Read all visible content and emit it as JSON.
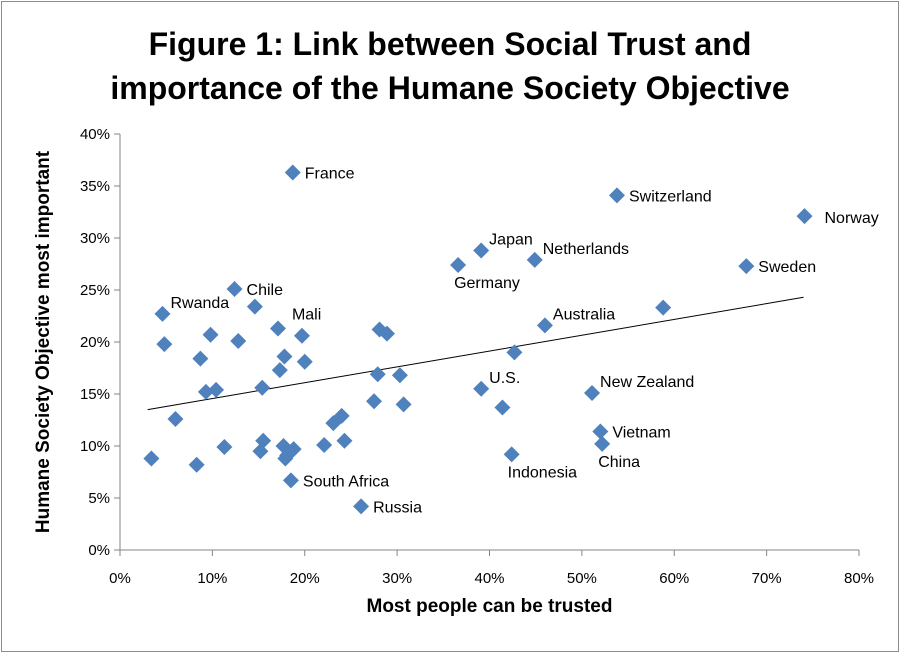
{
  "chart_data": {
    "type": "scatter",
    "title_line1": "Figure 1: Link between Social Trust and",
    "title_line2": "importance of the Humane Society Objective",
    "xlabel": "Most people can be trusted",
    "ylabel": "Humane Society Objective most important",
    "xlim": [
      0,
      0.8
    ],
    "ylim": [
      0,
      0.4
    ],
    "x_ticks": [
      {
        "value": 0.0,
        "label": "0%"
      },
      {
        "value": 0.1,
        "label": "10%"
      },
      {
        "value": 0.2,
        "label": "20%"
      },
      {
        "value": 0.3,
        "label": "30%"
      },
      {
        "value": 0.4,
        "label": "40%"
      },
      {
        "value": 0.5,
        "label": "50%"
      },
      {
        "value": 0.6,
        "label": "60%"
      },
      {
        "value": 0.7,
        "label": "70%"
      },
      {
        "value": 0.8,
        "label": "80%"
      }
    ],
    "y_ticks": [
      {
        "value": 0.0,
        "label": "0%"
      },
      {
        "value": 0.05,
        "label": "5%"
      },
      {
        "value": 0.1,
        "label": "10%"
      },
      {
        "value": 0.15,
        "label": "15%"
      },
      {
        "value": 0.2,
        "label": "20%"
      },
      {
        "value": 0.25,
        "label": "25%"
      },
      {
        "value": 0.3,
        "label": "30%"
      },
      {
        "value": 0.35,
        "label": "35%"
      },
      {
        "value": 0.4,
        "label": "40%"
      }
    ],
    "grid": false,
    "marker_color": "#4f81bd",
    "trendline": {
      "x": [
        0.03,
        0.74
      ],
      "y": [
        0.135,
        0.243
      ],
      "color": "#000000"
    },
    "points": [
      {
        "x": 0.187,
        "y": 0.363,
        "label": "France",
        "label_pos": "right"
      },
      {
        "x": 0.538,
        "y": 0.341,
        "label": "Switzerland",
        "label_pos": "right"
      },
      {
        "x": 0.741,
        "y": 0.321,
        "label": "Norway",
        "label_pos": "right-far"
      },
      {
        "x": 0.391,
        "y": 0.288,
        "label": "Japan",
        "label_pos": "above-right"
      },
      {
        "x": 0.449,
        "y": 0.279,
        "label": "Netherlands",
        "label_pos": "above-right"
      },
      {
        "x": 0.366,
        "y": 0.274,
        "label": "Germany",
        "label_pos": "below-right"
      },
      {
        "x": 0.678,
        "y": 0.273,
        "label": "Sweden",
        "label_pos": "right"
      },
      {
        "x": 0.124,
        "y": 0.251,
        "label": "Chile",
        "label_pos": "right"
      },
      {
        "x": 0.046,
        "y": 0.227,
        "label": "Rwanda",
        "label_pos": "above-right"
      },
      {
        "x": 0.146,
        "y": 0.234,
        "label": "",
        "label_pos": "none"
      },
      {
        "x": 0.588,
        "y": 0.233,
        "label": "",
        "label_pos": "none"
      },
      {
        "x": 0.46,
        "y": 0.216,
        "label": "Australia",
        "label_pos": "above-right"
      },
      {
        "x": 0.171,
        "y": 0.213,
        "label": "Mali",
        "label_pos": "above-right-far"
      },
      {
        "x": 0.098,
        "y": 0.207,
        "label": "",
        "label_pos": "none"
      },
      {
        "x": 0.197,
        "y": 0.206,
        "label": "",
        "label_pos": "none"
      },
      {
        "x": 0.281,
        "y": 0.212,
        "label": "",
        "label_pos": "none"
      },
      {
        "x": 0.289,
        "y": 0.208,
        "label": "",
        "label_pos": "none"
      },
      {
        "x": 0.048,
        "y": 0.198,
        "label": "",
        "label_pos": "none"
      },
      {
        "x": 0.128,
        "y": 0.201,
        "label": "",
        "label_pos": "none"
      },
      {
        "x": 0.427,
        "y": 0.19,
        "label": "",
        "label_pos": "none"
      },
      {
        "x": 0.087,
        "y": 0.184,
        "label": "",
        "label_pos": "none"
      },
      {
        "x": 0.178,
        "y": 0.186,
        "label": "",
        "label_pos": "none"
      },
      {
        "x": 0.2,
        "y": 0.181,
        "label": "",
        "label_pos": "none"
      },
      {
        "x": 0.173,
        "y": 0.173,
        "label": "",
        "label_pos": "none"
      },
      {
        "x": 0.279,
        "y": 0.169,
        "label": "",
        "label_pos": "none"
      },
      {
        "x": 0.303,
        "y": 0.168,
        "label": "",
        "label_pos": "none"
      },
      {
        "x": 0.154,
        "y": 0.156,
        "label": "",
        "label_pos": "none"
      },
      {
        "x": 0.093,
        "y": 0.152,
        "label": "",
        "label_pos": "none"
      },
      {
        "x": 0.104,
        "y": 0.154,
        "label": "",
        "label_pos": "none"
      },
      {
        "x": 0.391,
        "y": 0.155,
        "label": "U.S.",
        "label_pos": "above-right"
      },
      {
        "x": 0.511,
        "y": 0.151,
        "label": "New Zealand",
        "label_pos": "above-right"
      },
      {
        "x": 0.275,
        "y": 0.143,
        "label": "",
        "label_pos": "none"
      },
      {
        "x": 0.307,
        "y": 0.14,
        "label": "",
        "label_pos": "none"
      },
      {
        "x": 0.414,
        "y": 0.137,
        "label": "",
        "label_pos": "none"
      },
      {
        "x": 0.06,
        "y": 0.126,
        "label": "",
        "label_pos": "none"
      },
      {
        "x": 0.24,
        "y": 0.129,
        "label": "",
        "label_pos": "none"
      },
      {
        "x": 0.231,
        "y": 0.122,
        "label": "",
        "label_pos": "none"
      },
      {
        "x": 0.52,
        "y": 0.114,
        "label": "Vietnam",
        "label_pos": "right"
      },
      {
        "x": 0.155,
        "y": 0.105,
        "label": "",
        "label_pos": "none"
      },
      {
        "x": 0.243,
        "y": 0.105,
        "label": "",
        "label_pos": "none"
      },
      {
        "x": 0.221,
        "y": 0.101,
        "label": "",
        "label_pos": "none"
      },
      {
        "x": 0.113,
        "y": 0.099,
        "label": "",
        "label_pos": "none"
      },
      {
        "x": 0.177,
        "y": 0.1,
        "label": "",
        "label_pos": "none"
      },
      {
        "x": 0.522,
        "y": 0.102,
        "label": "China",
        "label_pos": "below-right"
      },
      {
        "x": 0.152,
        "y": 0.095,
        "label": "",
        "label_pos": "none"
      },
      {
        "x": 0.188,
        "y": 0.097,
        "label": "",
        "label_pos": "none"
      },
      {
        "x": 0.181,
        "y": 0.091,
        "label": "",
        "label_pos": "none"
      },
      {
        "x": 0.179,
        "y": 0.088,
        "label": "",
        "label_pos": "none"
      },
      {
        "x": 0.424,
        "y": 0.092,
        "label": "Indonesia",
        "label_pos": "below-right"
      },
      {
        "x": 0.034,
        "y": 0.088,
        "label": "",
        "label_pos": "none"
      },
      {
        "x": 0.083,
        "y": 0.082,
        "label": "",
        "label_pos": "none"
      },
      {
        "x": 0.185,
        "y": 0.067,
        "label": "South Africa",
        "label_pos": "right"
      },
      {
        "x": 0.261,
        "y": 0.042,
        "label": "Russia",
        "label_pos": "right"
      }
    ]
  }
}
